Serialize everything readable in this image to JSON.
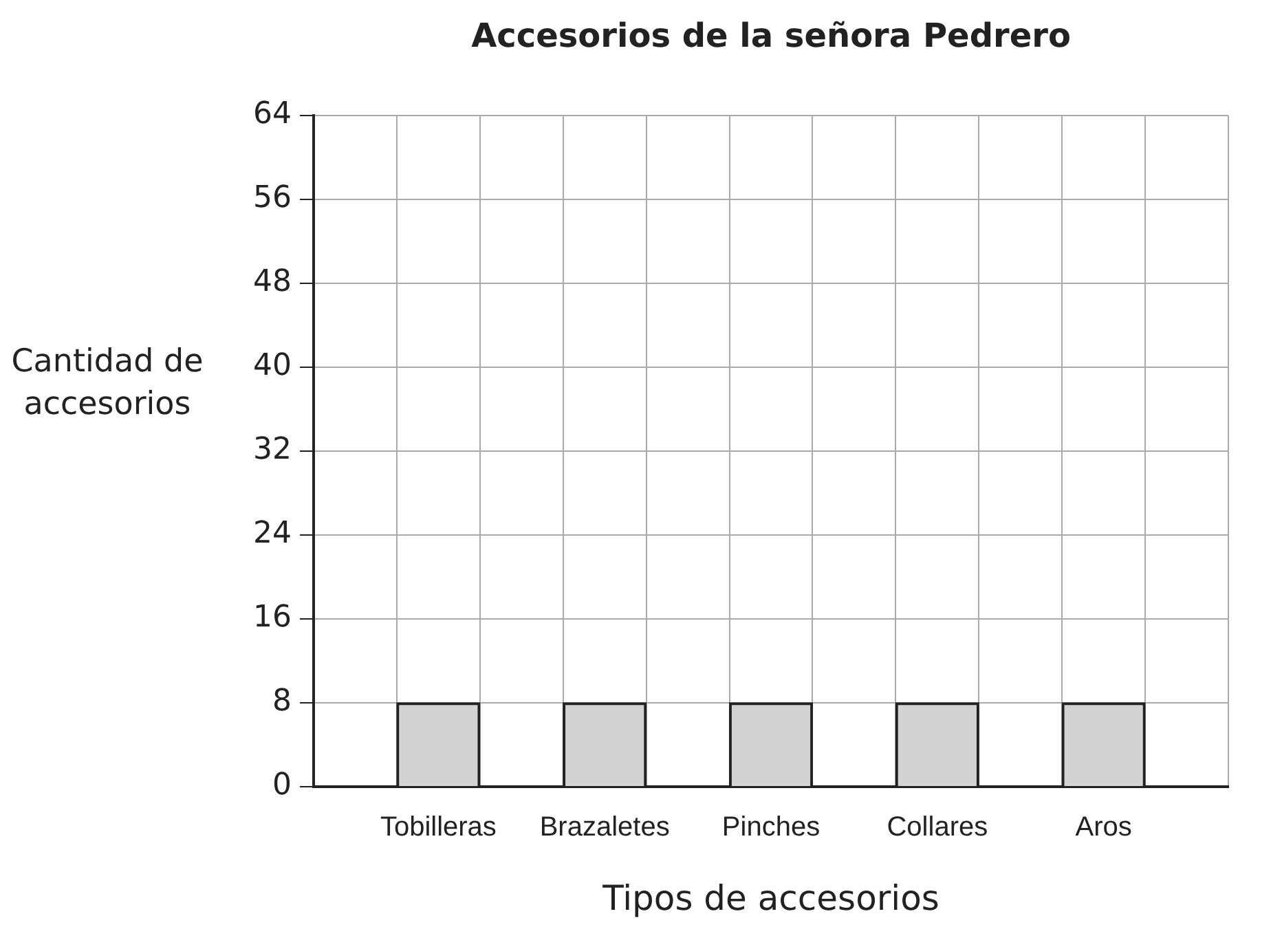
{
  "chart_data": {
    "type": "bar",
    "title": "Accesorios de la señora Pedrero",
    "xlabel": "Tipos de accesorios",
    "ylabel": "Cantidad de accesorios",
    "categories": [
      "Tobilleras",
      "Brazaletes",
      "Pinches",
      "Collares",
      "Aros"
    ],
    "values": [
      8,
      8,
      8,
      8,
      8
    ],
    "color": "#d3d3d3",
    "ylim": [
      0,
      64
    ],
    "yticks": [
      0,
      8,
      16,
      24,
      32,
      40,
      48,
      56,
      64
    ],
    "grid": true,
    "legend": false
  }
}
